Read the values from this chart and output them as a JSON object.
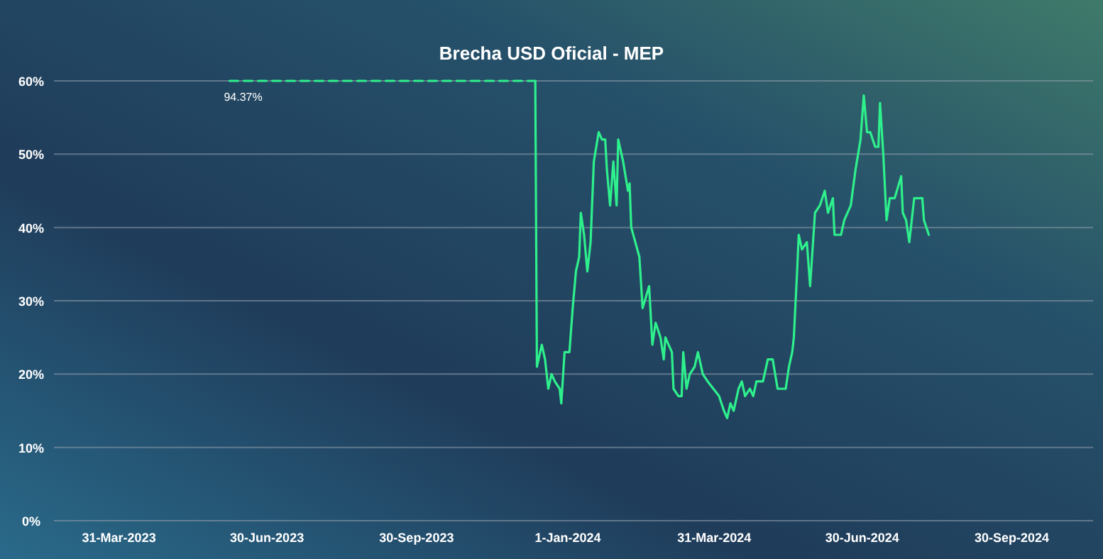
{
  "chart_data": {
    "type": "line",
    "title": "Brecha USD Oficial - MEP",
    "xlim": [
      "2023-02-19",
      "2024-11-19"
    ],
    "xticks": [
      {
        "value": "2023-03-31",
        "label": "31-Mar-2023"
      },
      {
        "value": "2023-06-30",
        "label": "30-Jun-2023"
      },
      {
        "value": "2023-09-30",
        "label": "30-Sep-2023"
      },
      {
        "value": "2024-01-01",
        "label": "1-Jan-2024"
      },
      {
        "value": "2024-03-31",
        "label": "31-Mar-2024"
      },
      {
        "value": "2024-06-30",
        "label": "30-Jun-2024"
      },
      {
        "value": "2024-09-30",
        "label": "30-Sep-2024"
      }
    ],
    "ylim": [
      0,
      60
    ],
    "yticks": [
      {
        "value": 0,
        "label": "0%"
      },
      {
        "value": 10,
        "label": "10%"
      },
      {
        "value": 20,
        "label": "20%"
      },
      {
        "value": 30,
        "label": "30%"
      },
      {
        "value": 40,
        "label": "40%"
      },
      {
        "value": 50,
        "label": "50%"
      },
      {
        "value": 60,
        "label": "60%"
      }
    ],
    "grid": "y",
    "marker": "none",
    "annotations": [
      {
        "text": "94.37%",
        "x": "2023-06-07",
        "y": 60
      }
    ],
    "series": [
      {
        "color": "#2ef08c",
        "line_style": "dashed",
        "x": [
          "2023-06-07",
          "2023-12-12"
        ],
        "values": [
          60,
          60
        ]
      },
      {
        "color": "#2ef08c",
        "line_style": "solid",
        "x": [
          "2023-12-12",
          "2023-12-13",
          "2023-12-16",
          "2023-12-18",
          "2023-12-20",
          "2023-12-22",
          "2023-12-24",
          "2023-12-27",
          "2023-12-28",
          "2023-12-30",
          "2024-01-02",
          "2024-01-04",
          "2024-01-06",
          "2024-01-08",
          "2024-01-09",
          "2024-01-11",
          "2024-01-13",
          "2024-01-15",
          "2024-01-17",
          "2024-01-20",
          "2024-01-22",
          "2024-01-24",
          "2024-01-25",
          "2024-01-27",
          "2024-01-29",
          "2024-01-31",
          "2024-02-01",
          "2024-02-04",
          "2024-02-07",
          "2024-02-08",
          "2024-02-09",
          "2024-02-14",
          "2024-02-16",
          "2024-02-20",
          "2024-02-22",
          "2024-02-24",
          "2024-02-27",
          "2024-02-29",
          "2024-03-01",
          "2024-03-05",
          "2024-03-06",
          "2024-03-09",
          "2024-03-11",
          "2024-03-12",
          "2024-03-14",
          "2024-03-16",
          "2024-03-19",
          "2024-03-21",
          "2024-03-24",
          "2024-03-27",
          "2024-04-03",
          "2024-04-06",
          "2024-04-08",
          "2024-04-10",
          "2024-04-12",
          "2024-04-15",
          "2024-04-17",
          "2024-04-19",
          "2024-04-22",
          "2024-04-24",
          "2024-04-26",
          "2024-04-30",
          "2024-05-03",
          "2024-05-06",
          "2024-05-09",
          "2024-05-11",
          "2024-05-14",
          "2024-05-16",
          "2024-05-18",
          "2024-05-19",
          "2024-05-21",
          "2024-05-22",
          "2024-05-24",
          "2024-05-27",
          "2024-05-29",
          "2024-06-01",
          "2024-06-04",
          "2024-06-07",
          "2024-06-09",
          "2024-06-12",
          "2024-06-13",
          "2024-06-17",
          "2024-06-19",
          "2024-06-23",
          "2024-06-26",
          "2024-06-29",
          "2024-07-01",
          "2024-07-03",
          "2024-07-05",
          "2024-07-08",
          "2024-07-10",
          "2024-07-11",
          "2024-07-13",
          "2024-07-15",
          "2024-07-17",
          "2024-07-20",
          "2024-07-24",
          "2024-07-25",
          "2024-07-27",
          "2024-07-29",
          "2024-08-01",
          "2024-08-04",
          "2024-08-06",
          "2024-08-07",
          "2024-08-10"
        ],
        "values": [
          60,
          21,
          24,
          22,
          18,
          20,
          19,
          18,
          16,
          23,
          23,
          29,
          34,
          36,
          42,
          39,
          34,
          38,
          49,
          53,
          52,
          52,
          48,
          43,
          49,
          43,
          52,
          49,
          45,
          46,
          40,
          36,
          29,
          32,
          24,
          27,
          25,
          22,
          25,
          23,
          18,
          17,
          17,
          23,
          18,
          20,
          21,
          23,
          20,
          19,
          17,
          15,
          14,
          16,
          15,
          18,
          19,
          17,
          18,
          17,
          19,
          19,
          22,
          22,
          18,
          18,
          18,
          21,
          23,
          25,
          34,
          39,
          37,
          38,
          32,
          42,
          43,
          45,
          42,
          44,
          39,
          39,
          41,
          43,
          48,
          52,
          58,
          53,
          53,
          51,
          51,
          57,
          50,
          41,
          44,
          44,
          47,
          42,
          41,
          38,
          44,
          44,
          44,
          41,
          39
        ]
      }
    ]
  }
}
